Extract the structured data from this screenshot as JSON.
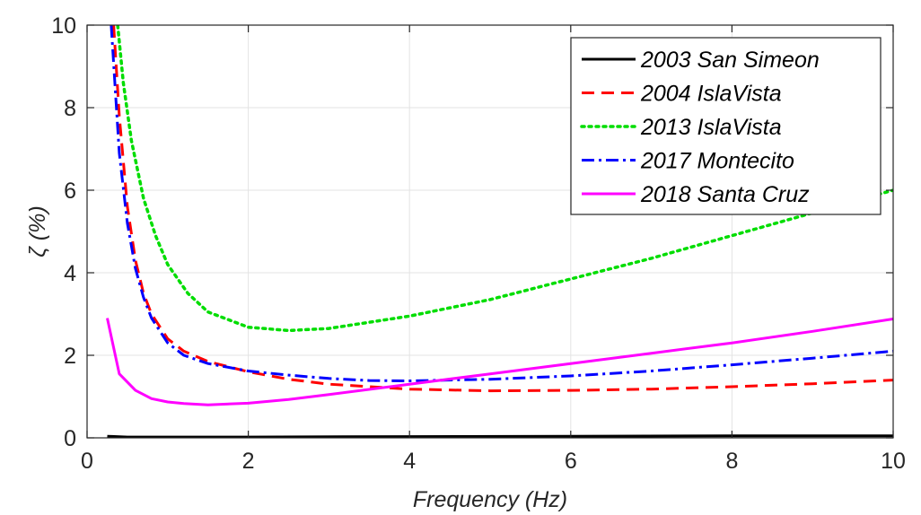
{
  "chart_data": {
    "type": "line",
    "xlabel": "Frequency (Hz)",
    "ylabel": "ζ (%)",
    "xlim": [
      0,
      10
    ],
    "ylim": [
      0,
      10
    ],
    "x_ticks": [
      "0",
      "2",
      "4",
      "6",
      "8",
      "10"
    ],
    "y_ticks": [
      "0",
      "2",
      "4",
      "6",
      "8",
      "10"
    ],
    "grid": true,
    "legend_position": "top-right",
    "series": [
      {
        "name": "2003 San Simeon",
        "color": "#000000",
        "style": "solid",
        "x": [
          0.25,
          0.5,
          1,
          2,
          4,
          6,
          8,
          10
        ],
        "y": [
          0.04,
          0.02,
          0.02,
          0.02,
          0.03,
          0.04,
          0.05,
          0.05
        ]
      },
      {
        "name": "2004 IslaVista",
        "color": "#ff0000",
        "style": "dashed",
        "x": [
          0.33,
          0.4,
          0.5,
          0.6,
          0.7,
          0.8,
          1,
          1.2,
          1.5,
          2,
          2.5,
          3,
          4,
          5,
          6,
          7,
          8,
          9,
          10
        ],
        "y": [
          10,
          7.8,
          5.6,
          4.3,
          3.5,
          3.0,
          2.4,
          2.1,
          1.85,
          1.6,
          1.42,
          1.3,
          1.18,
          1.14,
          1.15,
          1.18,
          1.24,
          1.31,
          1.4
        ]
      },
      {
        "name": "2013 IslaVista",
        "color": "#00dd00",
        "style": "dotted",
        "x": [
          0.38,
          0.45,
          0.55,
          0.7,
          0.85,
          1,
          1.25,
          1.5,
          2,
          2.5,
          3,
          4,
          5,
          6,
          7,
          8,
          9,
          10
        ],
        "y": [
          10,
          8.6,
          7.2,
          5.8,
          4.9,
          4.2,
          3.5,
          3.05,
          2.68,
          2.6,
          2.65,
          2.95,
          3.35,
          3.85,
          4.35,
          4.9,
          5.45,
          6.0
        ]
      },
      {
        "name": "2017 Montecito",
        "color": "#0000ff",
        "style": "dashdot",
        "x": [
          0.3,
          0.4,
          0.5,
          0.6,
          0.7,
          0.8,
          1,
          1.2,
          1.5,
          2,
          2.5,
          3,
          3.5,
          4,
          5,
          6,
          7,
          8,
          9,
          10
        ],
        "y": [
          10,
          6.9,
          5.2,
          4.1,
          3.4,
          2.9,
          2.3,
          2.0,
          1.8,
          1.62,
          1.52,
          1.44,
          1.39,
          1.38,
          1.42,
          1.5,
          1.62,
          1.77,
          1.93,
          2.1
        ]
      },
      {
        "name": "2018 Santa Cruz",
        "color": "#ff00ff",
        "style": "solid",
        "x": [
          0.25,
          0.4,
          0.6,
          0.8,
          1,
          1.2,
          1.5,
          2,
          2.5,
          3,
          4,
          5,
          6,
          7,
          8,
          9,
          10
        ],
        "y": [
          2.9,
          1.55,
          1.15,
          0.95,
          0.87,
          0.83,
          0.8,
          0.84,
          0.93,
          1.05,
          1.3,
          1.55,
          1.8,
          2.05,
          2.3,
          2.58,
          2.88
        ]
      }
    ]
  }
}
